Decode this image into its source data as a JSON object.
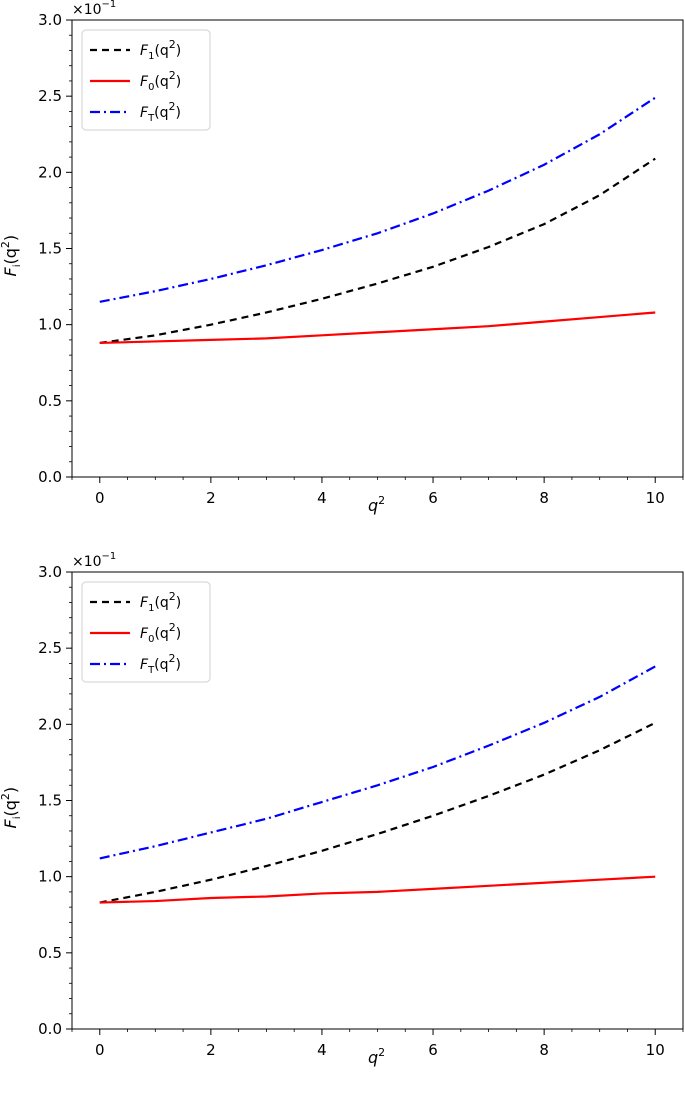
{
  "chart_data": [
    {
      "type": "line",
      "title": "",
      "xlabel": "q",
      "xlabel_sup": "2",
      "ylabel": "F",
      "ylabel_sub": "i",
      "ylabel_arg": "(q",
      "ylabel_sup": "2",
      "ylabel_close": ")",
      "offset_text": "×10",
      "offset_exp": "−1",
      "xlim": [
        -0.5,
        10.5
      ],
      "ylim": [
        0.0,
        3.0
      ],
      "xticks": [
        0,
        2,
        4,
        6,
        8,
        10
      ],
      "xtick_labels": [
        "0",
        "2",
        "4",
        "6",
        "8",
        "10"
      ],
      "yticks": [
        0.0,
        0.5,
        1.0,
        1.5,
        2.0,
        2.5,
        3.0
      ],
      "ytick_labels": [
        "0.0",
        "0.5",
        "1.0",
        "1.5",
        "2.0",
        "2.5",
        "3.0"
      ],
      "grid": false,
      "legend_position": "top-left",
      "x": [
        0,
        1,
        2,
        3,
        4,
        5,
        6,
        7,
        8,
        9,
        10
      ],
      "series": [
        {
          "name": "F",
          "name_sub": "1",
          "name_arg": "(q",
          "name_sup": "2",
          "name_close": ")",
          "color": "#000000",
          "style": "dashed",
          "values": [
            0.88,
            0.93,
            1.0,
            1.08,
            1.17,
            1.27,
            1.38,
            1.51,
            1.66,
            1.85,
            2.09
          ]
        },
        {
          "name": "F",
          "name_sub": "0",
          "name_arg": "(q",
          "name_sup": "2",
          "name_close": ")",
          "color": "#ff0000",
          "style": "solid",
          "values": [
            0.88,
            0.89,
            0.9,
            0.91,
            0.93,
            0.95,
            0.97,
            0.99,
            1.02,
            1.05,
            1.08
          ]
        },
        {
          "name": "F",
          "name_sub": "T",
          "name_arg": "(q",
          "name_sup": "2",
          "name_close": ")",
          "color": "#0000ff",
          "style": "dashdot",
          "values": [
            1.15,
            1.22,
            1.3,
            1.39,
            1.49,
            1.6,
            1.73,
            1.88,
            2.05,
            2.25,
            2.49
          ]
        }
      ]
    },
    {
      "type": "line",
      "title": "",
      "xlabel": "q",
      "xlabel_sup": "2",
      "ylabel": "F",
      "ylabel_sub": "i",
      "ylabel_arg": "(q",
      "ylabel_sup": "2",
      "ylabel_close": ")",
      "offset_text": "×10",
      "offset_exp": "−1",
      "xlim": [
        -0.5,
        10.5
      ],
      "ylim": [
        0.0,
        3.0
      ],
      "xticks": [
        0,
        2,
        4,
        6,
        8,
        10
      ],
      "xtick_labels": [
        "0",
        "2",
        "4",
        "6",
        "8",
        "10"
      ],
      "yticks": [
        0.0,
        0.5,
        1.0,
        1.5,
        2.0,
        2.5,
        3.0
      ],
      "ytick_labels": [
        "0.0",
        "0.5",
        "1.0",
        "1.5",
        "2.0",
        "2.5",
        "3.0"
      ],
      "grid": false,
      "legend_position": "top-left",
      "x": [
        0,
        1,
        2,
        3,
        4,
        5,
        6,
        7,
        8,
        9,
        10
      ],
      "series": [
        {
          "name": "F",
          "name_sub": "1",
          "name_arg": "(q",
          "name_sup": "2",
          "name_close": ")",
          "color": "#000000",
          "style": "dashed",
          "values": [
            0.83,
            0.9,
            0.98,
            1.07,
            1.17,
            1.28,
            1.4,
            1.53,
            1.67,
            1.83,
            2.01
          ]
        },
        {
          "name": "F",
          "name_sub": "0",
          "name_arg": "(q",
          "name_sup": "2",
          "name_close": ")",
          "color": "#ff0000",
          "style": "solid",
          "values": [
            0.83,
            0.84,
            0.86,
            0.87,
            0.89,
            0.9,
            0.92,
            0.94,
            0.96,
            0.98,
            1.0
          ]
        },
        {
          "name": "F",
          "name_sub": "T",
          "name_arg": "(q",
          "name_sup": "2",
          "name_close": ")",
          "color": "#0000ff",
          "style": "dashdot",
          "values": [
            1.12,
            1.2,
            1.29,
            1.38,
            1.49,
            1.6,
            1.72,
            1.86,
            2.01,
            2.18,
            2.38
          ]
        }
      ]
    }
  ]
}
